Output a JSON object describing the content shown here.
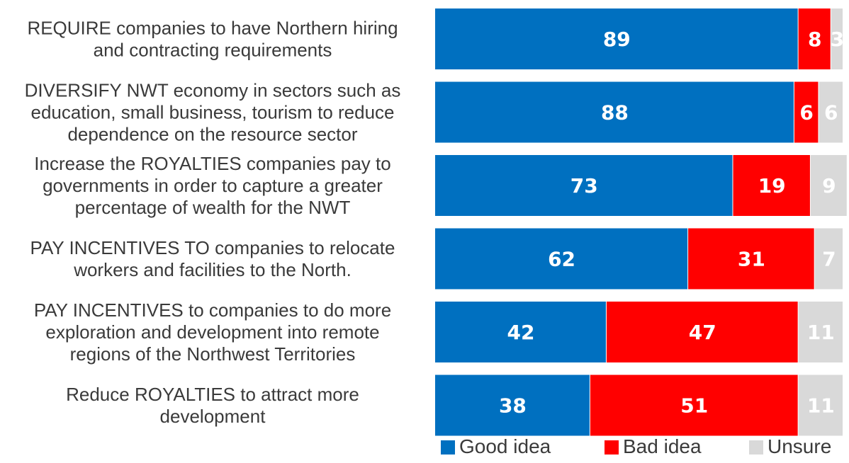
{
  "chart_data": {
    "type": "bar",
    "orientation": "horizontal",
    "stacked": true,
    "categories": [
      [
        "REQUIRE companies to have Northern hiring",
        "and contracting requirements"
      ],
      [
        "DIVERSIFY NWT economy in sectors such as",
        "education, small business, tourism to reduce",
        "dependence on the resource sector"
      ],
      [
        "Increase the ROYALTIES companies pay to",
        "governments in order to capture a greater",
        "percentage of wealth for the NWT"
      ],
      [
        "PAY INCENTIVES TO companies to relocate",
        "workers and facilities to the North."
      ],
      [
        "PAY INCENTIVES to companies to do more",
        "exploration and development into remote",
        "regions of the Northwest Territories"
      ],
      [
        "Reduce ROYALTIES to attract more",
        "development"
      ]
    ],
    "series": [
      {
        "name": "Good idea",
        "color": "#0070C0",
        "values": [
          89,
          88,
          73,
          62,
          42,
          38
        ]
      },
      {
        "name": "Bad idea",
        "color": "#FF0000",
        "values": [
          8,
          6,
          19,
          31,
          47,
          51
        ]
      },
      {
        "name": "Unsure",
        "color": "#D9D9D9",
        "values": [
          3,
          6,
          9,
          7,
          11,
          11
        ]
      }
    ],
    "xlim": [
      0,
      100
    ],
    "grid": false,
    "legend_position": "bottom-right"
  }
}
